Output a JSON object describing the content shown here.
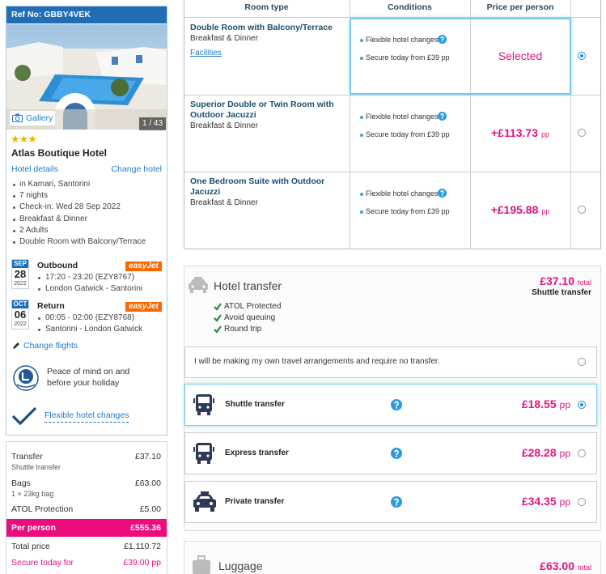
{
  "sidebar": {
    "ref": "Ref No: GBBY4VEK",
    "gallery": "Gallery",
    "photo_count": "1 / 43",
    "stars": "★★★",
    "hotel_name": "Atlas Boutique Hotel",
    "hotel_details": "Hotel details",
    "change_hotel": "Change hotel",
    "details": [
      "in Kamari, Santorini",
      "7 nights",
      "Check-in: Wed 28 Sep 2022",
      "Breakfast & Dinner",
      "2 Adults",
      "Double Room with Balcony/Terrace"
    ],
    "flights": [
      {
        "month": "SEP",
        "day": "28",
        "year": "2022",
        "label": "Outbound",
        "airline": "easyJet",
        "times": "17:20 - 23:20 (EZY8767)",
        "route": "London Gatwick - Santorini"
      },
      {
        "month": "OCT",
        "day": "06",
        "year": "2022",
        "label": "Return",
        "airline": "easyJet",
        "times": "00:05 - 02:00 (EZY8768)",
        "route": "Santorini - London Gatwick"
      }
    ],
    "change_flights": "Change flights",
    "peace_of_mind": [
      "Peace of mind on and",
      "before your holiday"
    ],
    "flexible": "Flexible hotel changes"
  },
  "summary": {
    "rows": [
      {
        "label": "Transfer",
        "sub": "Shuttle transfer",
        "amount": "£37.10"
      },
      {
        "label": "Bags",
        "sub": "1 × 23kg bag",
        "amount": "£63.00"
      },
      {
        "label": "ATOL Protection",
        "amount": "£5.00"
      }
    ],
    "per_person": {
      "label": "Per person",
      "amount": "£555.36"
    },
    "total": {
      "label": "Total price",
      "amount": "£1,110.72"
    },
    "secure": {
      "label": "Secure today for",
      "amount": "£39.00 pp"
    }
  },
  "rooms": {
    "headers": [
      "Room type",
      "Conditions",
      "Price per person"
    ],
    "rows": [
      {
        "name": "Double Room with Balcony/Terrace",
        "board": "Breakfast & Dinner",
        "link": "Facilities",
        "conditions": [
          "Flexible hotel changes",
          "Secure today from £39 pp"
        ],
        "price": "Selected",
        "selected": true
      },
      {
        "name": "Superior Double or Twin Room with Outdoor Jacuzzi",
        "board": "Breakfast & Dinner",
        "conditions": [
          "Flexible hotel changes",
          "Secure today from £39 pp"
        ],
        "price": "+£113.73",
        "unit": "pp",
        "selected": false
      },
      {
        "name": "One Bedroom Suite with Outdoor Jacuzzi",
        "board": "Breakfast & Dinner",
        "conditions": [
          "Flexible hotel changes",
          "Secure today from £39 pp"
        ],
        "price": "+£195.88",
        "unit": "pp",
        "selected": false
      }
    ]
  },
  "transfer": {
    "title": "Hotel transfer",
    "total": "£37.10",
    "total_label": "total",
    "chosen": "Shuttle transfer",
    "features": [
      "ATOL Protected",
      "Avoid queuing",
      "Round trip"
    ],
    "own": "I will be making my own travel arrangements and require no transfer.",
    "options": [
      {
        "name": "Shuttle transfer",
        "price": "£18.55",
        "unit": "pp",
        "selected": true
      },
      {
        "name": "Express transfer",
        "price": "£28.28",
        "unit": "pp",
        "selected": false
      },
      {
        "name": "Private transfer",
        "price": "£34.35",
        "unit": "pp",
        "selected": false
      }
    ]
  },
  "luggage": {
    "title": "Luggage",
    "total": "£63.00",
    "total_label": "total"
  }
}
